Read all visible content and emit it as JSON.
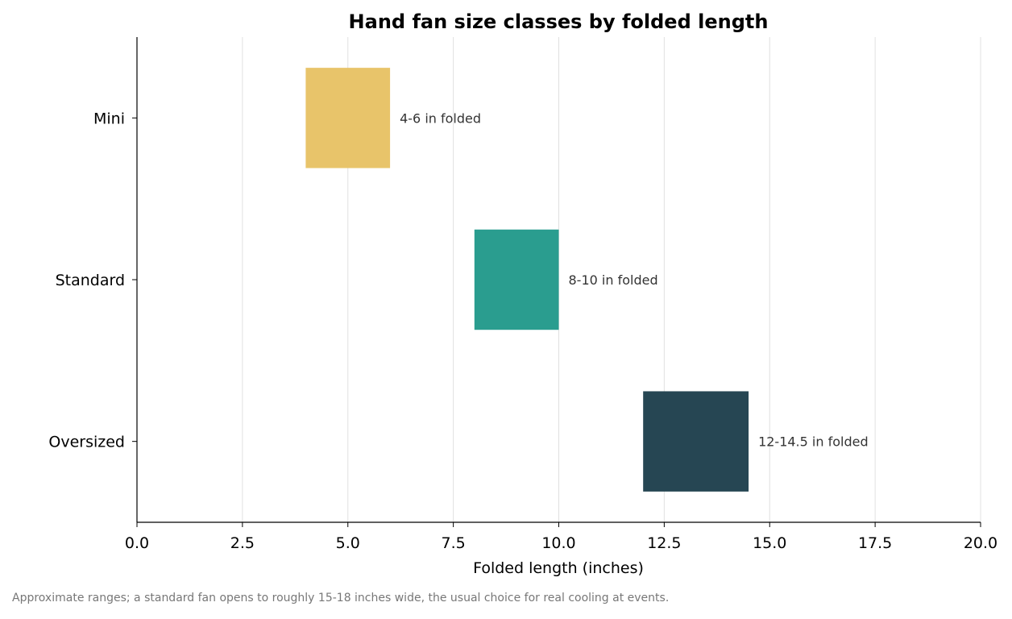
{
  "chart_data": {
    "type": "bar",
    "orientation": "horizontal",
    "title": "Hand fan size classes by folded length",
    "xlabel": "Folded length (inches)",
    "ylabel": "",
    "xlim": [
      0,
      20
    ],
    "x_ticks": [
      "0.0",
      "2.5",
      "5.0",
      "7.5",
      "10.0",
      "12.5",
      "15.0",
      "17.5",
      "20.0"
    ],
    "grid": "vertical",
    "categories": [
      "Mini",
      "Standard",
      "Oversized"
    ],
    "ranges": [
      {
        "category": "Mini",
        "start": 4,
        "end": 6,
        "label": "4-6 in folded",
        "color": "#E8C46A"
      },
      {
        "category": "Standard",
        "start": 8,
        "end": 10,
        "label": "8-10 in folded",
        "color": "#2A9D8F"
      },
      {
        "category": "Oversized",
        "start": 12,
        "end": 14.5,
        "label": "12-14.5 in folded",
        "color": "#264653"
      }
    ]
  },
  "footnote": "Approximate ranges; a standard fan opens to roughly 15-18 inches wide, the usual choice for real cooling at events."
}
